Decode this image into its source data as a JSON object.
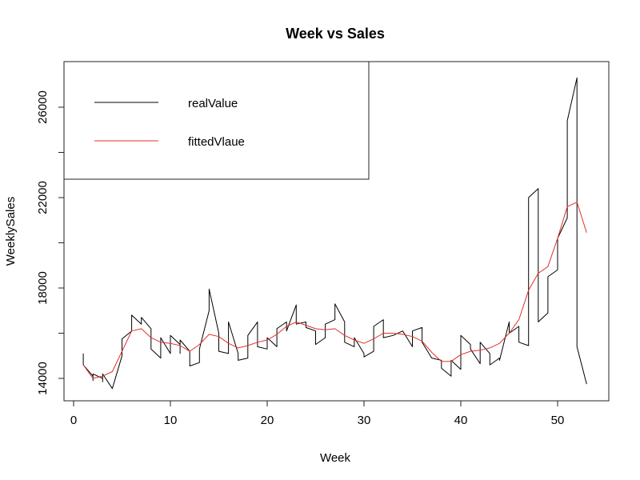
{
  "chart_data": {
    "type": "line",
    "title": "Week vs Sales",
    "xlabel": "Week",
    "ylabel": "WeeklySales",
    "xlim": [
      0,
      55
    ],
    "ylim": [
      13000,
      28000
    ],
    "x_ticks": [
      0,
      10,
      20,
      30,
      40,
      50
    ],
    "y_ticks": [
      14000,
      18000,
      22000,
      26000
    ],
    "grid": false,
    "legend_position": "top-left",
    "series": [
      {
        "name": "realValue",
        "color": "#000000",
        "points": [
          [
            1,
            15100
          ],
          [
            1,
            14600
          ],
          [
            2,
            14100
          ],
          [
            2,
            13900
          ],
          [
            2,
            14200
          ],
          [
            3,
            14000
          ],
          [
            3,
            13850
          ],
          [
            3,
            14200
          ],
          [
            4,
            13550
          ],
          [
            5,
            15000
          ],
          [
            5,
            15750
          ],
          [
            6,
            16100
          ],
          [
            6,
            16800
          ],
          [
            7,
            16400
          ],
          [
            7,
            16700
          ],
          [
            8,
            16200
          ],
          [
            8,
            15300
          ],
          [
            9,
            14900
          ],
          [
            9,
            15800
          ],
          [
            10,
            15100
          ],
          [
            10,
            15900
          ],
          [
            11,
            15500
          ],
          [
            11,
            15100
          ],
          [
            11,
            15700
          ],
          [
            12,
            15200
          ],
          [
            12,
            14550
          ],
          [
            13,
            14700
          ],
          [
            13,
            15300
          ],
          [
            14,
            17000
          ],
          [
            14,
            17950
          ],
          [
            15,
            16000
          ],
          [
            15,
            15200
          ],
          [
            16,
            15100
          ],
          [
            16,
            16500
          ],
          [
            17,
            15100
          ],
          [
            17,
            14800
          ],
          [
            18,
            14900
          ],
          [
            18,
            15900
          ],
          [
            19,
            16500
          ],
          [
            19,
            15400
          ],
          [
            20,
            15300
          ],
          [
            20,
            15800
          ],
          [
            21,
            15400
          ],
          [
            21,
            16200
          ],
          [
            22,
            16500
          ],
          [
            22,
            16100
          ],
          [
            23,
            17250
          ],
          [
            23,
            16400
          ],
          [
            24,
            16500
          ],
          [
            24,
            16250
          ],
          [
            25,
            16100
          ],
          [
            25,
            15500
          ],
          [
            26,
            15800
          ],
          [
            26,
            16400
          ],
          [
            27,
            16600
          ],
          [
            27,
            17300
          ],
          [
            28,
            16500
          ],
          [
            28,
            15600
          ],
          [
            29,
            15400
          ],
          [
            29,
            15800
          ],
          [
            30,
            15100
          ],
          [
            30,
            14950
          ],
          [
            31,
            15200
          ],
          [
            31,
            16300
          ],
          [
            32,
            16600
          ],
          [
            32,
            15800
          ],
          [
            33,
            15900
          ],
          [
            34,
            16100
          ],
          [
            35,
            15400
          ],
          [
            35,
            16100
          ],
          [
            36,
            16250
          ],
          [
            36,
            15600
          ],
          [
            37,
            14900
          ],
          [
            38,
            14800
          ],
          [
            38,
            14450
          ],
          [
            39,
            14100
          ],
          [
            39,
            14800
          ],
          [
            40,
            14400
          ],
          [
            40,
            15900
          ],
          [
            41,
            15500
          ],
          [
            41,
            15300
          ],
          [
            42,
            14650
          ],
          [
            42,
            15600
          ],
          [
            43,
            15100
          ],
          [
            43,
            14600
          ],
          [
            44,
            14900
          ],
          [
            44,
            14800
          ],
          [
            45,
            16500
          ],
          [
            45,
            16000
          ],
          [
            46,
            16300
          ],
          [
            46,
            15800
          ],
          [
            46,
            15600
          ],
          [
            47,
            15450
          ],
          [
            47,
            22000
          ],
          [
            48,
            22400
          ],
          [
            48,
            16500
          ],
          [
            49,
            16900
          ],
          [
            49,
            18500
          ],
          [
            50,
            18800
          ],
          [
            50,
            20200
          ],
          [
            51,
            21100
          ],
          [
            51,
            25400
          ],
          [
            52,
            27300
          ],
          [
            52,
            15400
          ],
          [
            53,
            13750
          ]
        ]
      },
      {
        "name": "fittedVlaue",
        "color": "#e0302e",
        "points": [
          [
            1,
            14600
          ],
          [
            2,
            14000
          ],
          [
            3,
            14100
          ],
          [
            4,
            14300
          ],
          [
            5,
            15200
          ],
          [
            6,
            16100
          ],
          [
            7,
            16200
          ],
          [
            8,
            15800
          ],
          [
            9,
            15600
          ],
          [
            10,
            15550
          ],
          [
            11,
            15450
          ],
          [
            12,
            15200
          ],
          [
            13,
            15500
          ],
          [
            14,
            15950
          ],
          [
            15,
            15850
          ],
          [
            16,
            15550
          ],
          [
            17,
            15350
          ],
          [
            18,
            15450
          ],
          [
            19,
            15600
          ],
          [
            20,
            15700
          ],
          [
            21,
            15950
          ],
          [
            22,
            16300
          ],
          [
            23,
            16500
          ],
          [
            24,
            16350
          ],
          [
            25,
            16200
          ],
          [
            26,
            16150
          ],
          [
            27,
            16200
          ],
          [
            28,
            15900
          ],
          [
            29,
            15700
          ],
          [
            30,
            15550
          ],
          [
            31,
            15750
          ],
          [
            32,
            16000
          ],
          [
            33,
            16000
          ],
          [
            34,
            15950
          ],
          [
            35,
            15850
          ],
          [
            36,
            15650
          ],
          [
            37,
            15150
          ],
          [
            38,
            14750
          ],
          [
            39,
            14750
          ],
          [
            40,
            15050
          ],
          [
            41,
            15200
          ],
          [
            42,
            15250
          ],
          [
            43,
            15350
          ],
          [
            44,
            15550
          ],
          [
            45,
            16000
          ],
          [
            46,
            16600
          ],
          [
            47,
            17900
          ],
          [
            48,
            18650
          ],
          [
            49,
            18950
          ],
          [
            50,
            20200
          ],
          [
            51,
            21600
          ],
          [
            52,
            21800
          ],
          [
            53,
            20450
          ]
        ]
      }
    ]
  }
}
